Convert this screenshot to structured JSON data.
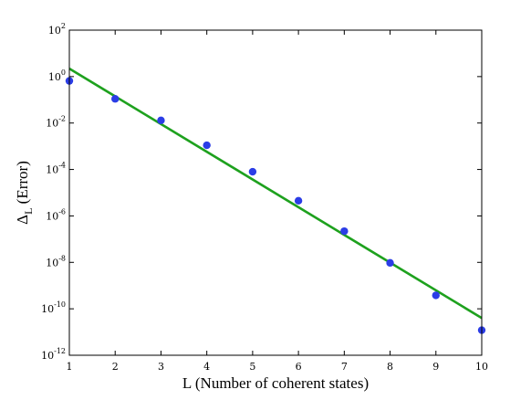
{
  "chart_data": {
    "type": "scatter",
    "xlabel": "L (Number of coherent states)",
    "ylabel": {
      "symbol": "Δ",
      "subscript": "L",
      "text": " (Error)"
    },
    "xlim": [
      1,
      10
    ],
    "ylim": [
      1e-12,
      100
    ],
    "yscale": "log",
    "grid": false,
    "x_ticks": [
      "1",
      "2",
      "3",
      "4",
      "5",
      "6",
      "7",
      "8",
      "9",
      "10"
    ],
    "y_ticks": [
      {
        "value": 1e-12,
        "base": "10",
        "exp": "-12"
      },
      {
        "value": 1e-10,
        "base": "10",
        "exp": "-10"
      },
      {
        "value": 1e-08,
        "base": "10",
        "exp": "-8"
      },
      {
        "value": 1e-06,
        "base": "10",
        "exp": "-6"
      },
      {
        "value": 0.0001,
        "base": "10",
        "exp": "-4"
      },
      {
        "value": 0.01,
        "base": "10",
        "exp": "-2"
      },
      {
        "value": 1,
        "base": "10",
        "exp": "0"
      },
      {
        "value": 100,
        "base": "10",
        "exp": "2"
      }
    ],
    "series": [
      {
        "kind": "points",
        "color": "#2b3de6",
        "x": [
          1,
          2,
          3,
          4,
          5,
          6,
          7,
          8,
          9,
          10
        ],
        "y": [
          0.65,
          0.11,
          0.013,
          0.0011,
          8e-05,
          4.5e-06,
          2.2e-07,
          9.5e-09,
          3.8e-10,
          1.2e-11
        ]
      },
      {
        "kind": "line",
        "color": "#1ea11e",
        "x": [
          1,
          10
        ],
        "y": [
          2.2,
          4e-11
        ]
      }
    ]
  }
}
